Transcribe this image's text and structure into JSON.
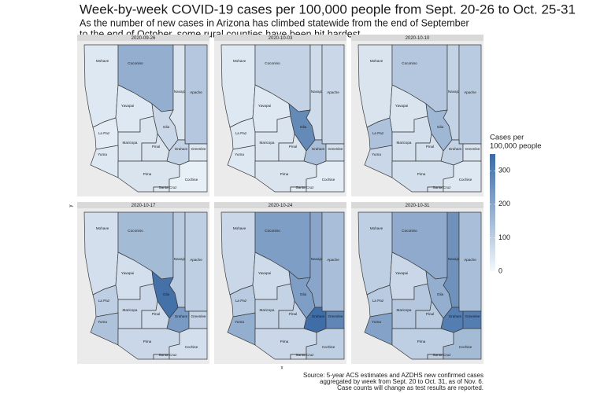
{
  "title": "Week-by-week COVID-19 cases per 100,000 people from Sept. 20-26 to Oct. 25-31",
  "subtitle": [
    "As the number of new cases in Arizona has climbed statewide from the end of September",
    "to the end of October, some rural counties have been hit hardest."
  ],
  "x_label": "x",
  "y_label": "y",
  "counties": [
    "Mohave",
    "Coconino",
    "Navajo",
    "Apache",
    "Yavapai",
    "La Paz",
    "Maricopa",
    "Gila",
    "Pinal",
    "Graham",
    "Greenlee",
    "Yuma",
    "Pima",
    "Santa Cruz",
    "Cochise"
  ],
  "facets": [
    {
      "label": "2020-09-26",
      "values": [
        40,
        180,
        50,
        120,
        40,
        30,
        50,
        80,
        50,
        90,
        40,
        40,
        50,
        40,
        20
      ]
    },
    {
      "label": "2020-10-03",
      "values": [
        40,
        90,
        70,
        80,
        40,
        40,
        50,
        270,
        50,
        140,
        60,
        40,
        50,
        30,
        30
      ]
    },
    {
      "label": "2020-10-10",
      "values": [
        50,
        120,
        90,
        110,
        50,
        130,
        60,
        160,
        60,
        90,
        50,
        80,
        60,
        50,
        40
      ]
    },
    {
      "label": "2020-10-17",
      "values": [
        60,
        150,
        110,
        100,
        60,
        100,
        80,
        330,
        70,
        230,
        90,
        130,
        80,
        70,
        60
      ]
    },
    {
      "label": "2020-10-24",
      "values": [
        80,
        220,
        200,
        140,
        70,
        110,
        90,
        220,
        90,
        340,
        280,
        180,
        80,
        60,
        100
      ]
    },
    {
      "label": "2020-10-31",
      "values": [
        100,
        190,
        250,
        140,
        80,
        110,
        120,
        180,
        110,
        300,
        300,
        210,
        100,
        100,
        150
      ]
    }
  ],
  "legend": {
    "title": [
      "Cases per",
      "100,000 people"
    ],
    "lim": [
      0,
      350
    ],
    "ticks": [
      0,
      100,
      200,
      300
    ],
    "low_color": "#f3f8fc",
    "high_color": "#3a69a4"
  },
  "source": [
    "Source: 5-year ACS estimates and AZDHS new confirmed cases",
    "aggregated by week from Sept. 20 to Oct. 31, as of Nov. 6.",
    "Case counts will change as test results are reported."
  ]
}
